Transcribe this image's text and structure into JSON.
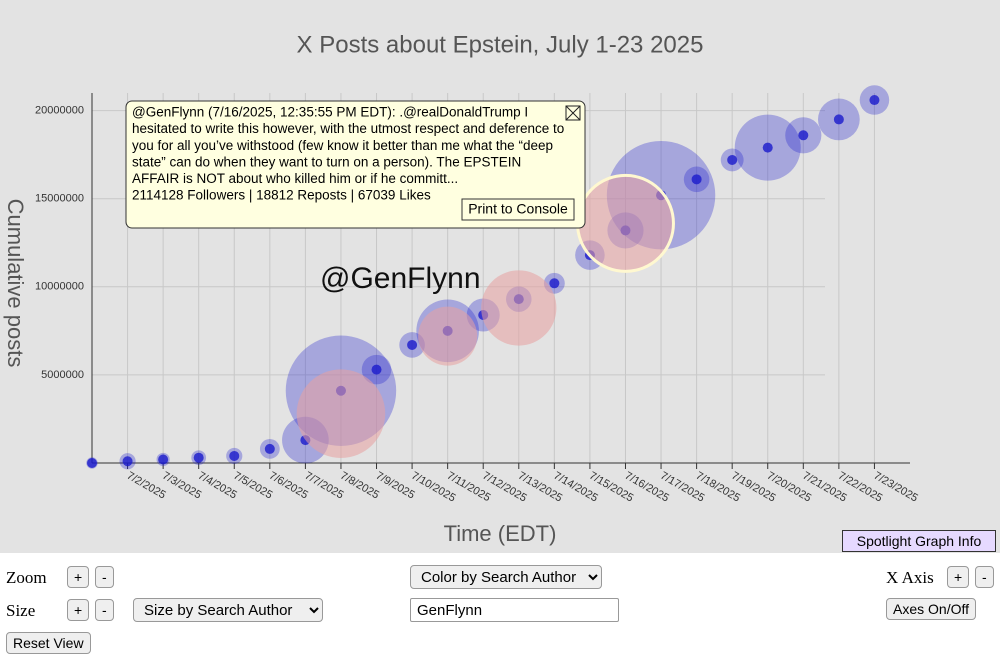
{
  "chart_data": {
    "type": "bubble",
    "title": "X Posts about Epstein, July 1-23 2025",
    "xlabel": "Time (EDT)",
    "ylabel": "Cumulative posts",
    "xlim": [
      "7/1/2025",
      "7/24/2025"
    ],
    "xticks": [
      "7/2/2025",
      "7/3/2025",
      "7/4/2025",
      "7/5/2025",
      "7/6/2025",
      "7/7/2025",
      "7/8/2025",
      "7/9/2025",
      "7/10/2025",
      "7/11/2025",
      "7/12/2025",
      "7/13/2025",
      "7/14/2025",
      "7/15/2025",
      "7/16/2025",
      "7/17/2025",
      "7/18/2025",
      "7/19/2025",
      "7/20/2025",
      "7/21/2025",
      "7/22/2025",
      "7/23/2025"
    ],
    "ylim": [
      0,
      21000000
    ],
    "yticks": [
      5000000,
      10000000,
      15000000,
      20000000
    ],
    "grid": true,
    "series": [
      {
        "color": "#1a1acc",
        "x": [
          "7/1/2025",
          "7/2/2025",
          "7/3/2025",
          "7/4/2025",
          "7/5/2025",
          "7/6/2025",
          "7/7/2025",
          "7/8/2025",
          "7/9/2025",
          "7/10/2025",
          "7/11/2025",
          "7/12/2025",
          "7/13/2025",
          "7/14/2025",
          "7/15/2025",
          "7/16/2025",
          "7/17/2025",
          "7/18/2025",
          "7/19/2025",
          "7/20/2025",
          "7/21/2025",
          "7/22/2025",
          "7/23/2025"
        ],
        "values": [
          0,
          100000,
          200000,
          300000,
          400000,
          800000,
          1300000,
          4100000,
          5300000,
          6700000,
          7500000,
          8400000,
          9300000,
          10200000,
          11800000,
          13200000,
          15200000,
          16100000,
          17200000,
          17900000,
          18600000,
          19500000,
          20600000
        ],
        "sizes": [
          30000,
          60000,
          40000,
          50000,
          60000,
          90000,
          500000,
          2800000,
          200000,
          150000,
          900000,
          250000,
          150000,
          100000,
          200000,
          300000,
          2700000,
          150000,
          120000,
          1000000,
          300000,
          400000,
          200000
        ]
      },
      {
        "name": "GenFlynn",
        "color": "#e8a0a0",
        "x": [
          "7/8/2025",
          "7/11/2025",
          "7/13/2025",
          "7/16/2025"
        ],
        "values": [
          2800000,
          7200000,
          8800000,
          13600000
        ],
        "sizes": [
          1800000,
          800000,
          1300000,
          2114128
        ]
      }
    ],
    "annotation": "@GenFlynn"
  },
  "tooltip": {
    "lines": [
      "@GenFlynn (7/16/2025, 12:35:55 PM EDT): .@realDonaldTrump I",
      "hesitated to write this however, with the utmost respect and deference to",
      "you for all you’ve withstood (few know it better than me what the “deep",
      "state” can do when they want to turn on a person). The EPSTEIN",
      "AFFAIR is NOT about who killed him or if he committ...",
      "2114128 Followers | 18812 Reposts | 67039 Likes"
    ],
    "button": "Print to Console"
  },
  "controls": {
    "info": "Spotlight Graph Info",
    "zoom": "Zoom",
    "size": "Size",
    "plus": "+",
    "minus": "-",
    "color_select": "Color by Search Author",
    "size_select": "Size by Search Author",
    "search": "GenFlynn",
    "xaxis": "X Axis",
    "axes": "Axes On/Off",
    "reset": "Reset View"
  }
}
